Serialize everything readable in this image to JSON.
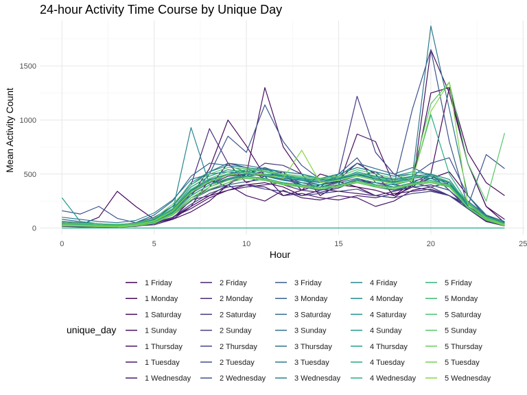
{
  "chart_data": {
    "type": "line",
    "title": "24-hour Activity Time Course by Unique Day",
    "xlabel": "Hour",
    "ylabel": "Mean Activity Count",
    "xlim": [
      -1.2,
      25.1
    ],
    "ylim": [
      -60,
      1920
    ],
    "x_ticks": [
      0,
      5,
      10,
      15,
      20,
      25
    ],
    "y_ticks": [
      0,
      500,
      1000,
      1500
    ],
    "grid": true,
    "legend_title": "unique_day",
    "legend_position": "bottom",
    "x": [
      0,
      1,
      2,
      3,
      4,
      5,
      6,
      7,
      8,
      9,
      10,
      11,
      12,
      13,
      14,
      15,
      16,
      17,
      18,
      19,
      20,
      21,
      22,
      23,
      24
    ],
    "series": [
      {
        "name": "1 Friday",
        "color": "#440154",
        "values": [
          30,
          25,
          20,
          20,
          30,
          60,
          120,
          250,
          380,
          600,
          420,
          480,
          520,
          350,
          400,
          430,
          380,
          300,
          280,
          400,
          460,
          520,
          300,
          120,
          40
        ]
      },
      {
        "name": "1 Monday",
        "color": "#450559",
        "values": [
          20,
          15,
          10,
          10,
          20,
          50,
          100,
          200,
          300,
          350,
          400,
          420,
          380,
          300,
          350,
          400,
          380,
          350,
          300,
          420,
          1250,
          1300,
          600,
          200,
          50
        ]
      },
      {
        "name": "1 Saturday",
        "color": "#460a5d",
        "values": [
          40,
          30,
          100,
          340,
          200,
          80,
          150,
          300,
          550,
          1000,
          760,
          480,
          300,
          350,
          500,
          450,
          600,
          500,
          300,
          380,
          500,
          1300,
          700,
          420,
          300
        ]
      },
      {
        "name": "1 Sunday",
        "color": "#470e61",
        "values": [
          60,
          50,
          40,
          30,
          40,
          50,
          80,
          150,
          250,
          400,
          500,
          1300,
          750,
          500,
          300,
          400,
          870,
          800,
          400,
          380,
          1650,
          1250,
          600,
          200,
          80
        ]
      },
      {
        "name": "1 Thursday",
        "color": "#481467",
        "values": [
          15,
          10,
          10,
          10,
          15,
          40,
          90,
          260,
          300,
          400,
          300,
          250,
          350,
          280,
          260,
          300,
          280,
          200,
          250,
          350,
          380,
          420,
          180,
          60,
          20
        ]
      },
      {
        "name": "1 Tuesday",
        "color": "#48186a",
        "values": [
          20,
          20,
          15,
          15,
          20,
          30,
          80,
          200,
          450,
          380,
          400,
          380,
          300,
          320,
          280,
          260,
          300,
          280,
          320,
          340,
          360,
          300,
          200,
          80,
          30
        ]
      },
      {
        "name": "1 Wednesday",
        "color": "#481b6d",
        "values": [
          25,
          20,
          15,
          10,
          20,
          40,
          100,
          180,
          280,
          350,
          380,
          400,
          420,
          380,
          360,
          340,
          320,
          300,
          340,
          380,
          400,
          350,
          180,
          60,
          20
        ]
      },
      {
        "name": "2 Friday",
        "color": "#47206e",
        "values": [
          30,
          25,
          20,
          15,
          25,
          60,
          150,
          300,
          400,
          480,
          500,
          520,
          480,
          400,
          380,
          420,
          460,
          400,
          380,
          420,
          380,
          300,
          200,
          90,
          30
        ]
      },
      {
        "name": "2 Monday",
        "color": "#472a7a",
        "values": [
          40,
          30,
          25,
          20,
          30,
          80,
          200,
          400,
          920,
          600,
          560,
          450,
          400,
          350,
          330,
          370,
          440,
          420,
          380,
          420,
          500,
          350,
          200,
          100,
          40
        ]
      },
      {
        "name": "2 Saturday",
        "color": "#453581",
        "values": [
          35,
          30,
          25,
          20,
          30,
          70,
          180,
          350,
          420,
          500,
          480,
          600,
          580,
          500,
          450,
          430,
          480,
          520,
          400,
          380,
          350,
          300,
          220,
          110,
          50
        ]
      },
      {
        "name": "2 Sunday",
        "color": "#433e85",
        "values": [
          50,
          40,
          30,
          25,
          30,
          60,
          120,
          260,
          350,
          420,
          480,
          500,
          450,
          400,
          380,
          500,
          1220,
          700,
          500,
          420,
          380,
          300,
          180,
          80,
          30
        ]
      },
      {
        "name": "2 Thursday",
        "color": "#414487",
        "values": [
          20,
          15,
          12,
          10,
          15,
          40,
          100,
          220,
          320,
          380,
          400,
          360,
          340,
          300,
          320,
          340,
          360,
          300,
          280,
          320,
          340,
          300,
          180,
          70,
          20
        ]
      },
      {
        "name": "2 Tuesday",
        "color": "#3e4c8a",
        "values": [
          25,
          20,
          15,
          12,
          20,
          50,
          130,
          250,
          380,
          450,
          500,
          550,
          480,
          420,
          400,
          460,
          500,
          450,
          420,
          480,
          600,
          650,
          300,
          100,
          30
        ]
      },
      {
        "name": "2 Wednesday",
        "color": "#3b528b",
        "values": [
          160,
          130,
          200,
          90,
          50,
          100,
          200,
          300,
          500,
          850,
          700,
          1140,
          800,
          580,
          450,
          500,
          650,
          420,
          400,
          1100,
          1650,
          800,
          200,
          680,
          550
        ]
      },
      {
        "name": "3 Friday",
        "color": "#38598c",
        "values": [
          30,
          25,
          20,
          15,
          30,
          60,
          150,
          320,
          420,
          500,
          520,
          480,
          450,
          420,
          380,
          400,
          450,
          380,
          350,
          400,
          420,
          380,
          200,
          80,
          30
        ]
      },
      {
        "name": "3 Monday",
        "color": "#355f8d",
        "values": [
          20,
          15,
          10,
          10,
          20,
          50,
          120,
          280,
          350,
          400,
          430,
          450,
          400,
          380,
          350,
          380,
          420,
          380,
          350,
          380,
          400,
          350,
          180,
          70,
          20
        ]
      },
      {
        "name": "3 Saturday",
        "color": "#31668e",
        "values": [
          80,
          60,
          40,
          30,
          50,
          120,
          250,
          480,
          600,
          580,
          520,
          560,
          500,
          450,
          420,
          480,
          600,
          550,
          500,
          560,
          480,
          400,
          250,
          120,
          60
        ]
      },
      {
        "name": "3 Sunday",
        "color": "#2e6d8e",
        "values": [
          60,
          50,
          40,
          30,
          40,
          80,
          200,
          400,
          520,
          600,
          580,
          550,
          520,
          500,
          450,
          500,
          560,
          520,
          480,
          500,
          460,
          380,
          220,
          100,
          40
        ]
      },
      {
        "name": "3 Thursday",
        "color": "#2c728e",
        "values": [
          30,
          25,
          20,
          15,
          25,
          60,
          140,
          300,
          400,
          450,
          480,
          460,
          420,
          400,
          380,
          400,
          440,
          400,
          380,
          420,
          440,
          400,
          200,
          80,
          30
        ]
      },
      {
        "name": "3 Tuesday",
        "color": "#29788e",
        "values": [
          100,
          80,
          60,
          50,
          70,
          140,
          260,
          450,
          500,
          520,
          500,
          480,
          460,
          440,
          420,
          450,
          500,
          480,
          450,
          480,
          1870,
          1100,
          300,
          120,
          60
        ]
      },
      {
        "name": "3 Wednesday",
        "color": "#277f8e",
        "values": [
          40,
          35,
          30,
          25,
          35,
          70,
          170,
          350,
          450,
          500,
          520,
          500,
          480,
          460,
          440,
          460,
          500,
          460,
          430,
          460,
          480,
          420,
          220,
          90,
          40
        ]
      },
      {
        "name": "4 Friday",
        "color": "#24868e",
        "values": [
          30,
          25,
          20,
          15,
          30,
          60,
          160,
          930,
          400,
          500,
          540,
          520,
          480,
          440,
          400,
          440,
          480,
          440,
          420,
          480,
          500,
          450,
          220,
          90,
          30
        ]
      },
      {
        "name": "4 Monday",
        "color": "#218c8d",
        "values": [
          25,
          20,
          15,
          12,
          25,
          55,
          140,
          300,
          400,
          460,
          500,
          480,
          440,
          420,
          400,
          420,
          460,
          420,
          400,
          440,
          460,
          420,
          200,
          80,
          25
        ]
      },
      {
        "name": "4 Saturday",
        "color": "#1f928c",
        "values": [
          50,
          40,
          30,
          25,
          35,
          80,
          200,
          420,
          520,
          580,
          560,
          540,
          520,
          500,
          460,
          500,
          560,
          520,
          480,
          520,
          500,
          420,
          240,
          110,
          50
        ]
      },
      {
        "name": "4 Sunday",
        "color": "#1f988b",
        "values": [
          280,
          60,
          40,
          30,
          40,
          80,
          180,
          380,
          480,
          540,
          520,
          500,
          480,
          460,
          420,
          460,
          520,
          480,
          440,
          480,
          460,
          380,
          220,
          100,
          40
        ]
      },
      {
        "name": "4 Thursday",
        "color": "#1fa188",
        "values": [
          20,
          18,
          15,
          12,
          20,
          45,
          120,
          260,
          360,
          420,
          460,
          440,
          400,
          380,
          360,
          380,
          420,
          380,
          360,
          400,
          420,
          380,
          190,
          75,
          22
        ]
      },
      {
        "name": "4 Tuesday",
        "color": "#22a785",
        "values": [
          0,
          0,
          0,
          0,
          0,
          0,
          0,
          0,
          0,
          0,
          0,
          0,
          0,
          0,
          0,
          0,
          0,
          0,
          0,
          0,
          0,
          0,
          0,
          0,
          0
        ]
      },
      {
        "name": "4 Wednesday",
        "color": "#28ae80",
        "values": [
          35,
          30,
          25,
          20,
          30,
          65,
          160,
          340,
          440,
          500,
          520,
          500,
          470,
          450,
          430,
          450,
          490,
          450,
          420,
          450,
          1050,
          500,
          230,
          90,
          35
        ]
      },
      {
        "name": "5 Friday",
        "color": "#2fb47c",
        "values": [
          30,
          25,
          20,
          15,
          25,
          60,
          150,
          300,
          400,
          460,
          480,
          460,
          420,
          400,
          380,
          400,
          440,
          400,
          380,
          420,
          440,
          400,
          200,
          80,
          30
        ]
      },
      {
        "name": "5 Monday",
        "color": "#3bbb75",
        "values": [
          25,
          20,
          15,
          12,
          20,
          50,
          130,
          280,
          380,
          440,
          470,
          450,
          410,
          390,
          370,
          390,
          430,
          390,
          370,
          410,
          430,
          390,
          190,
          75,
          25
        ]
      },
      {
        "name": "5 Saturday",
        "color": "#48c16e",
        "values": [
          40,
          35,
          30,
          25,
          35,
          70,
          180,
          360,
          460,
          520,
          540,
          520,
          490,
          470,
          450,
          470,
          510,
          470,
          440,
          470,
          490,
          430,
          240,
          100,
          40
        ]
      },
      {
        "name": "5 Sunday",
        "color": "#56c667",
        "values": [
          50,
          45,
          40,
          35,
          45,
          90,
          220,
          400,
          500,
          560,
          550,
          530,
          500,
          480,
          460,
          480,
          540,
          500,
          460,
          500,
          1150,
          1350,
          600,
          250,
          880
        ]
      },
      {
        "name": "5 Thursday",
        "color": "#65cb5e",
        "values": [
          20,
          18,
          15,
          12,
          20,
          45,
          120,
          260,
          360,
          420,
          460,
          440,
          400,
          380,
          360,
          380,
          420,
          380,
          360,
          400,
          420,
          380,
          190,
          75,
          22
        ]
      },
      {
        "name": "5 Tuesday",
        "color": "#75d054",
        "values": [
          25,
          20,
          15,
          12,
          20,
          50,
          130,
          280,
          380,
          440,
          470,
          450,
          410,
          390,
          370,
          390,
          430,
          390,
          370,
          410,
          430,
          390,
          190,
          75,
          25
        ]
      },
      {
        "name": "5 Wednesday",
        "color": "#86d549",
        "values": [
          30,
          25,
          20,
          15,
          30,
          65,
          160,
          330,
          430,
          490,
          510,
          490,
          460,
          720,
          420,
          440,
          480,
          440,
          410,
          440,
          1080,
          1350,
          220,
          90,
          30
        ]
      }
    ]
  }
}
